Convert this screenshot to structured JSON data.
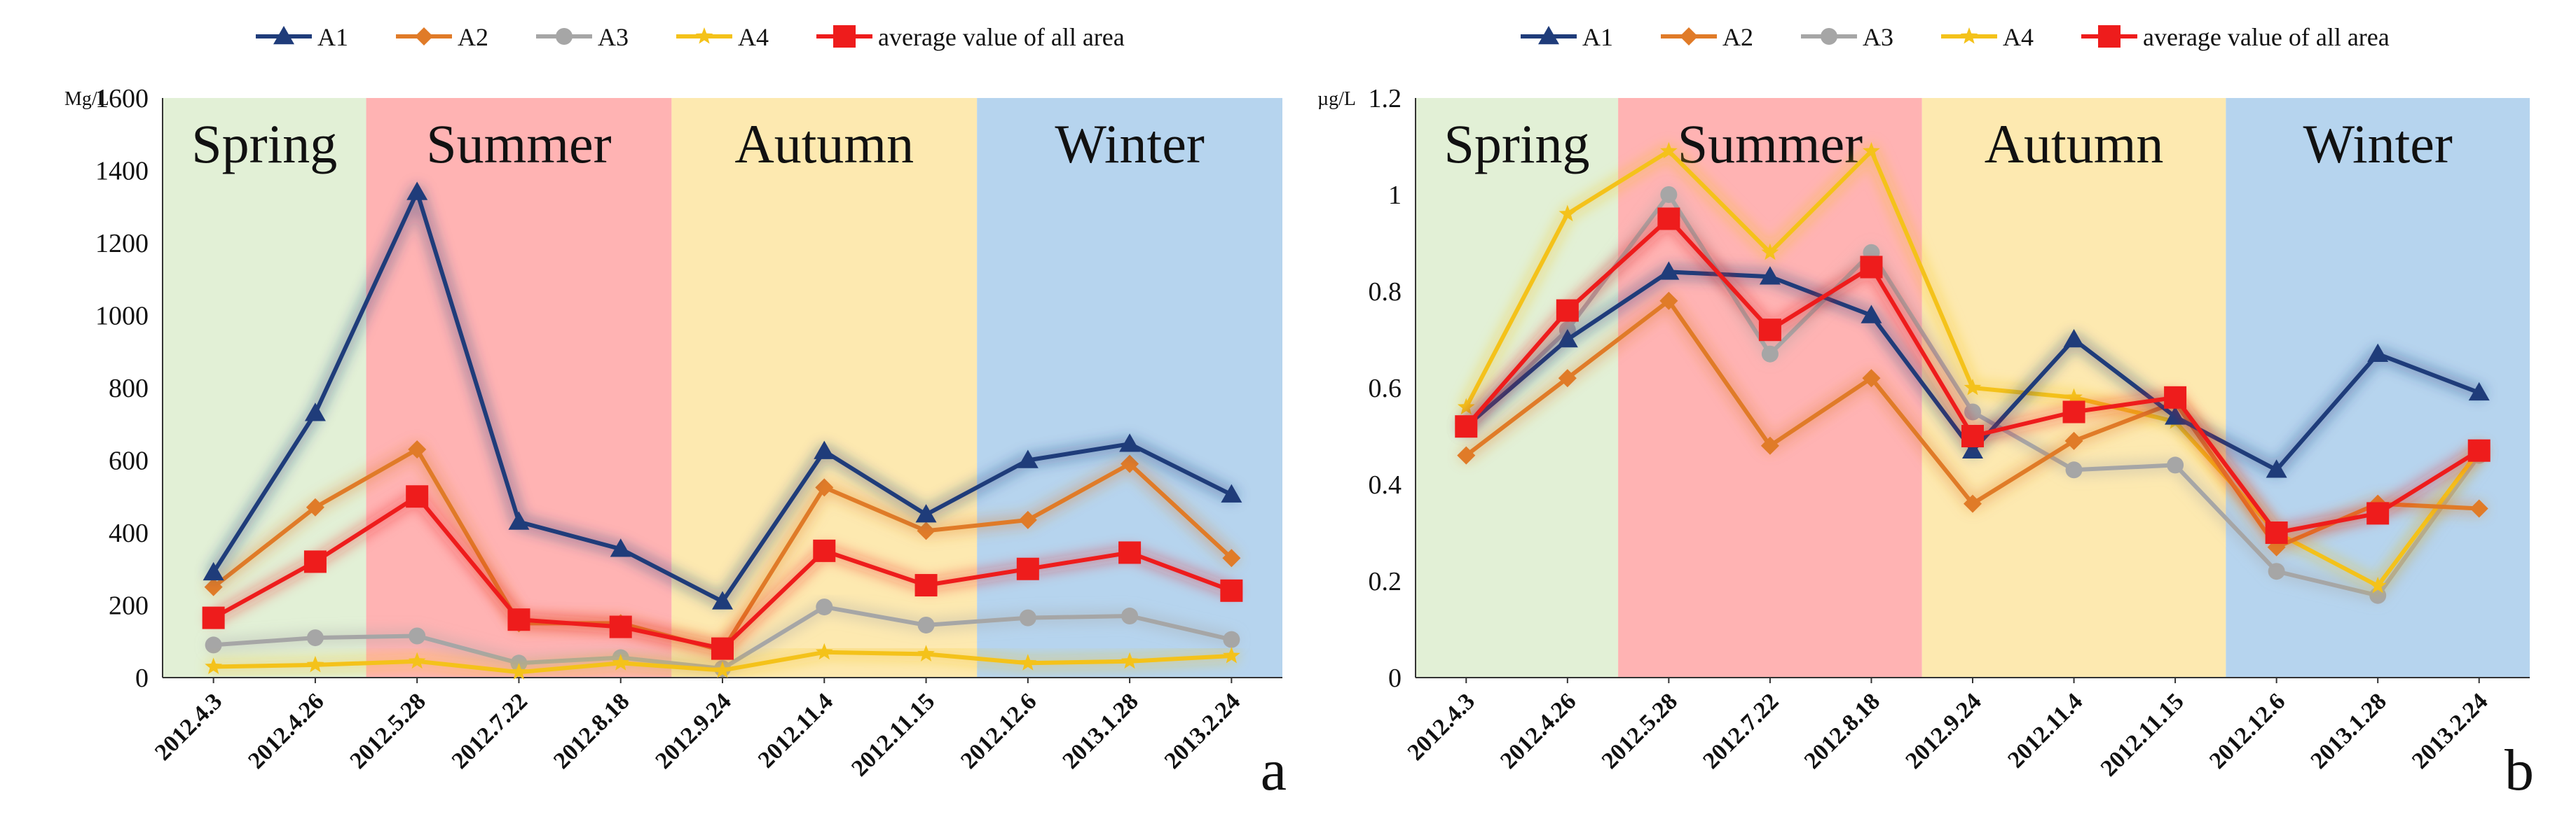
{
  "legend": [
    "A1",
    "A2",
    "A3",
    "A4",
    "average value of all area"
  ],
  "colors": {
    "A1": "#1f3c7a",
    "A2": "#e07b28",
    "A3": "#a6a6a6",
    "A4": "#f4c21a",
    "avg": "#ee1c1c",
    "spring": "#e2f0d6",
    "summer": "#ffb3b3",
    "autumn": "#fde9b0",
    "winter": "#b6d4ee"
  },
  "chart_data": [
    {
      "type": "line",
      "panel_label": "a",
      "y_unit": "Mg/L",
      "ylim": [
        0,
        1600
      ],
      "yticks": [
        "0",
        "200",
        "400",
        "600",
        "800",
        "1000",
        "1200",
        "1400",
        "1600"
      ],
      "categories": [
        "2012.4.3",
        "2012.4.26",
        "2012.5.28",
        "2012.7.22",
        "2012.8.18",
        "2012.9.24",
        "2012.11.4",
        "2012.11.15",
        "2012.12.6",
        "2013.1.28",
        "2013.2.24"
      ],
      "seasons": [
        {
          "name": "Spring",
          "from": 0,
          "to": 1.5
        },
        {
          "name": "Summer",
          "from": 1.5,
          "to": 4.5
        },
        {
          "name": "Autumn",
          "from": 4.5,
          "to": 7.5
        },
        {
          "name": "Winter",
          "from": 7.5,
          "to": 10.5
        }
      ],
      "series": [
        {
          "name": "A3",
          "values": [
            90,
            110,
            115,
            40,
            55,
            25,
            195,
            145,
            165,
            170,
            105
          ]
        },
        {
          "name": "A4",
          "values": [
            30,
            35,
            45,
            15,
            40,
            20,
            70,
            65,
            40,
            45,
            60
          ]
        },
        {
          "name": "A2",
          "values": [
            250,
            470,
            630,
            150,
            150,
            75,
            525,
            405,
            435,
            590,
            330
          ]
        },
        {
          "name": "A1",
          "values": [
            290,
            730,
            1340,
            430,
            355,
            210,
            625,
            450,
            600,
            645,
            505
          ]
        },
        {
          "name": "average value of all area",
          "values": [
            165,
            320,
            500,
            160,
            140,
            80,
            350,
            255,
            300,
            345,
            240
          ]
        }
      ]
    },
    {
      "type": "line",
      "panel_label": "b",
      "y_unit": "µg/L",
      "ylim": [
        0,
        1.2
      ],
      "yticks": [
        "0",
        "0.2",
        "0.4",
        "0.6",
        "0.8",
        "1",
        "1.2"
      ],
      "categories": [
        "2012.4.3",
        "2012.4.26",
        "2012.5.28",
        "2012.7.22",
        "2012.8.18",
        "2012.9.24",
        "2012.11.4",
        "2012.11.15",
        "2012.12.6",
        "2013.1.28",
        "2013.2.24"
      ],
      "seasons": [
        {
          "name": "Spring",
          "from": 0,
          "to": 1.5
        },
        {
          "name": "Summer",
          "from": 1.5,
          "to": 4.5
        },
        {
          "name": "Autumn",
          "from": 4.5,
          "to": 7.5
        },
        {
          "name": "Winter",
          "from": 7.5,
          "to": 10.5
        }
      ],
      "series": [
        {
          "name": "A3",
          "values": [
            0.52,
            0.72,
            1.0,
            0.67,
            0.88,
            0.55,
            0.43,
            0.44,
            0.22,
            0.17,
            0.46
          ]
        },
        {
          "name": "A4",
          "values": [
            0.56,
            0.96,
            1.09,
            0.88,
            1.09,
            0.6,
            0.58,
            0.53,
            0.3,
            0.19,
            0.47
          ]
        },
        {
          "name": "A2",
          "values": [
            0.46,
            0.62,
            0.78,
            0.48,
            0.62,
            0.36,
            0.49,
            0.57,
            0.27,
            0.36,
            0.35
          ]
        },
        {
          "name": "A1",
          "values": [
            0.52,
            0.7,
            0.84,
            0.83,
            0.75,
            0.47,
            0.7,
            0.54,
            0.43,
            0.67,
            0.59
          ]
        },
        {
          "name": "average value of all area",
          "values": [
            0.52,
            0.76,
            0.95,
            0.72,
            0.85,
            0.5,
            0.55,
            0.58,
            0.3,
            0.34,
            0.47
          ]
        }
      ]
    }
  ]
}
